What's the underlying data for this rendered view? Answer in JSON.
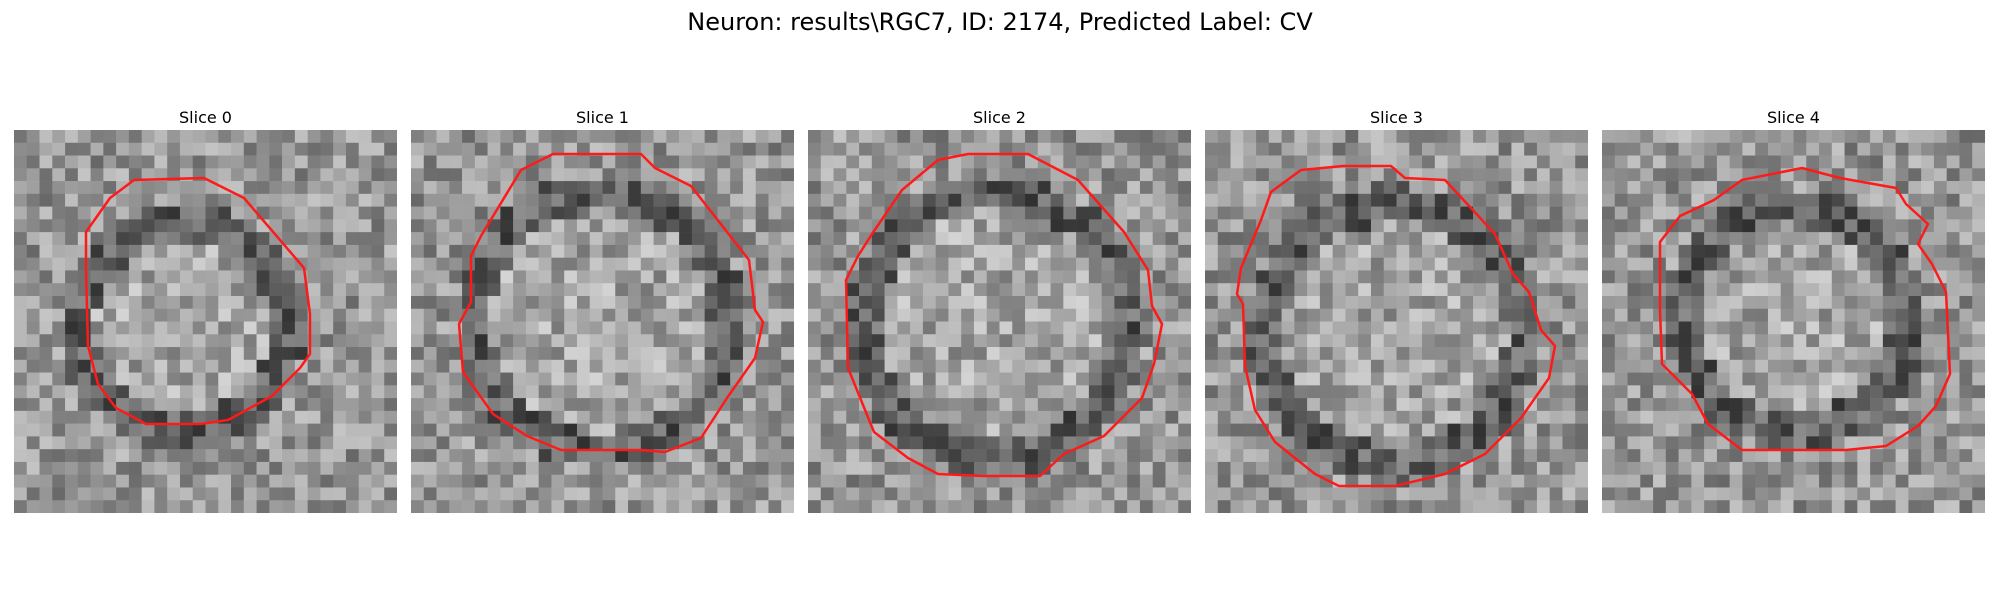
{
  "figure": {
    "title": "Neuron: results\\RGC7, ID: 2174, Predicted Label: CV"
  },
  "slices": [
    {
      "title": "Slice 0"
    },
    {
      "title": "Slice 1"
    },
    {
      "title": "Slice 2"
    },
    {
      "title": "Slice 3"
    },
    {
      "title": "Slice 4"
    }
  ],
  "colors": {
    "contour": "#ff1a1a",
    "background": "#ffffff"
  },
  "image": {
    "colormap": "gray",
    "grid_cells": 30
  }
}
